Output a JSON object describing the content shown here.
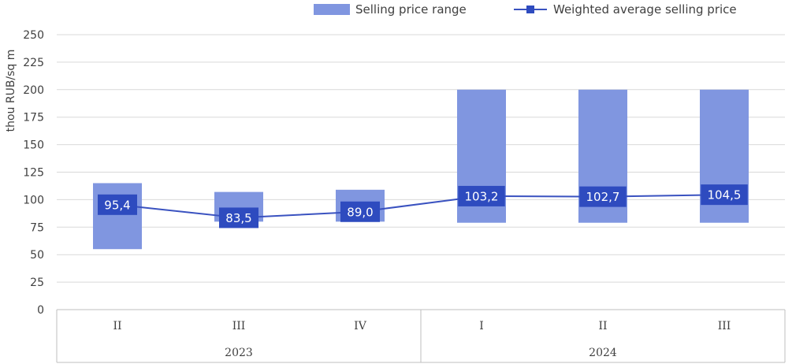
{
  "chart_data": {
    "type": "bar",
    "ylabel": "thou RUB/sq m",
    "ylim": [
      0,
      250
    ],
    "yticks": [
      0,
      25,
      50,
      75,
      100,
      125,
      150,
      175,
      200,
      225,
      250
    ],
    "grid": true,
    "legend_position": "top-right",
    "categories": [
      "II",
      "III",
      "IV",
      "I",
      "II",
      "III"
    ],
    "groups": [
      {
        "label": "2023",
        "span": 3
      },
      {
        "label": "2024",
        "span": 3
      }
    ],
    "series": [
      {
        "name": "Selling price range",
        "kind": "range-bar",
        "color": "#8096e0",
        "low": [
          55,
          80,
          80,
          79,
          79,
          79
        ],
        "high": [
          115,
          107,
          109,
          200,
          200,
          200
        ]
      },
      {
        "name": "Weighted average selling price",
        "kind": "line",
        "color": "#3a52c0",
        "label_color": "#2e4bbf",
        "values": [
          95.4,
          83.5,
          89.0,
          103.2,
          102.7,
          104.5
        ],
        "labels": [
          "95,4",
          "83,5",
          "89,0",
          "103,2",
          "102,7",
          "104,5"
        ]
      }
    ]
  }
}
